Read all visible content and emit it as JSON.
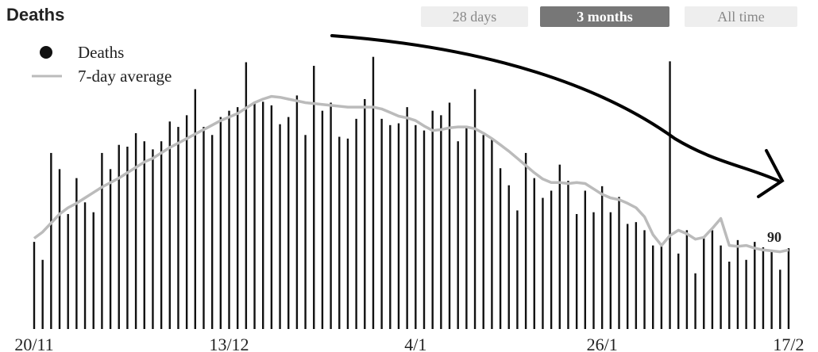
{
  "chart_data": {
    "type": "bar",
    "title": "Deaths",
    "range_buttons": [
      "28 days",
      "3 months",
      "All time"
    ],
    "selected_button": 1,
    "categories": [
      "20/11",
      null,
      null,
      null,
      null,
      null,
      null,
      null,
      null,
      null,
      null,
      null,
      null,
      null,
      null,
      null,
      null,
      null,
      null,
      null,
      null,
      null,
      null,
      "13/12",
      null,
      null,
      null,
      null,
      null,
      null,
      null,
      null,
      null,
      null,
      null,
      null,
      null,
      null,
      null,
      null,
      null,
      null,
      null,
      null,
      null,
      "4/1",
      null,
      null,
      null,
      null,
      null,
      null,
      null,
      null,
      null,
      null,
      null,
      null,
      null,
      null,
      null,
      null,
      null,
      null,
      null,
      null,
      null,
      "26/1",
      null,
      null,
      null,
      null,
      null,
      null,
      null,
      null,
      null,
      null,
      null,
      null,
      null,
      null,
      null,
      null,
      null,
      null,
      null,
      null,
      null,
      "17/2"
    ],
    "series": [
      {
        "name": "Deaths",
        "type": "bar",
        "color": "#111111",
        "values": [
          97,
          77,
          196,
          178,
          128,
          168,
          141,
          130,
          196,
          178,
          205,
          203,
          218,
          209,
          200,
          209,
          231,
          225,
          238,
          267,
          225,
          216,
          236,
          243,
          247,
          297,
          253,
          253,
          249,
          228,
          236,
          260,
          216,
          293,
          243,
          252,
          214,
          212,
          234,
          256,
          303,
          234,
          227,
          229,
          247,
          227,
          221,
          243,
          238,
          252,
          209,
          225,
          267,
          216,
          212,
          179,
          160,
          132,
          196,
          168,
          146,
          154,
          183,
          165,
          128,
          154,
          130,
          159,
          130,
          147,
          117,
          119,
          110,
          93,
          93,
          298,
          84,
          110,
          62,
          101,
          110,
          93,
          75,
          99,
          77,
          97,
          91,
          86,
          66,
          90
        ]
      },
      {
        "name": "7-day average",
        "type": "line",
        "color": "#bbbbbb",
        "values": [
          101,
          108,
          118,
          128,
          135,
          140,
          146,
          152,
          158,
          163,
          168,
          174,
          180,
          186,
          190,
          196,
          202,
          207,
          212,
          217,
          222,
          227,
          232,
          236,
          240,
          246,
          252,
          256,
          259,
          258,
          256,
          254,
          252,
          251,
          250,
          249,
          248,
          247,
          247,
          247,
          247,
          245,
          241,
          237,
          235,
          232,
          226,
          221,
          222,
          224,
          225,
          225,
          223,
          218,
          212,
          205,
          198,
          190,
          182,
          174,
          167,
          163,
          163,
          162,
          163,
          162,
          156,
          150,
          146,
          144,
          140,
          135,
          125,
          105,
          93,
          104,
          110,
          106,
          100,
          102,
          112,
          123,
          93,
          92,
          93,
          90,
          88,
          87,
          86,
          88
        ]
      }
    ]
  }
}
